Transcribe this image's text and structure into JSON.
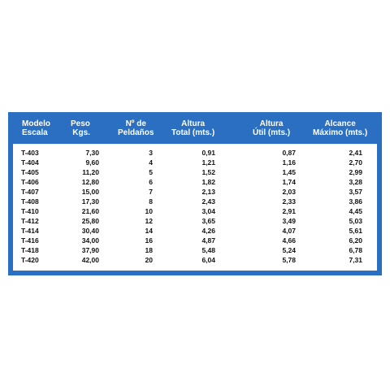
{
  "table": {
    "headers": [
      [
        "Modelo",
        "Escala"
      ],
      [
        "Peso",
        "Kgs."
      ],
      [
        "Nº de",
        "Peldaños"
      ],
      [
        "Altura",
        "Total (mts.)"
      ],
      [
        "Altura",
        "Útil (mts.)"
      ],
      [
        "Alcance",
        "Máximo (mts.)"
      ]
    ],
    "rows": [
      [
        "T-403",
        "7,30",
        "3",
        "0,91",
        "0,87",
        "2,41"
      ],
      [
        "T-404",
        "9,60",
        "4",
        "1,21",
        "1,16",
        "2,70"
      ],
      [
        "T-405",
        "11,20",
        "5",
        "1,52",
        "1,45",
        "2,99"
      ],
      [
        "T-406",
        "12,80",
        "6",
        "1,82",
        "1,74",
        "3,28"
      ],
      [
        "T-407",
        "15,00",
        "7",
        "2,13",
        "2,03",
        "3,57"
      ],
      [
        "T-408",
        "17,30",
        "8",
        "2,43",
        "2,33",
        "3,86"
      ],
      [
        "T-410",
        "21,60",
        "10",
        "3,04",
        "2,91",
        "4,45"
      ],
      [
        "T-412",
        "25,80",
        "12",
        "3,65",
        "3,49",
        "5,03"
      ],
      [
        "T-414",
        "30,40",
        "14",
        "4,26",
        "4,07",
        "5,61"
      ],
      [
        "T-416",
        "34,00",
        "16",
        "4,87",
        "4,66",
        "6,20"
      ],
      [
        "T-418",
        "37,90",
        "18",
        "5,48",
        "5,24",
        "6,78"
      ],
      [
        "T-420",
        "42,00",
        "20",
        "6,04",
        "5,78",
        "7,31"
      ]
    ]
  },
  "colors": {
    "header_bg": "#2a6fc1",
    "header_text": "#ffffff",
    "body_bg": "#ffffff",
    "body_text": "#111111"
  }
}
